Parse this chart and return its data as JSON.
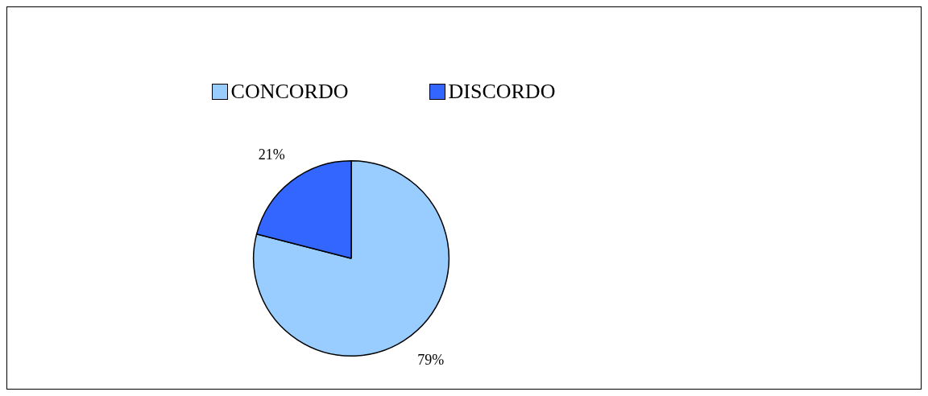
{
  "chart_data": {
    "type": "pie",
    "categories": [
      "CONCORDO",
      "DISCORDO"
    ],
    "values": [
      79,
      21
    ],
    "colors": [
      "#99ccff",
      "#3366ff"
    ],
    "value_labels": [
      "79%",
      "21%"
    ],
    "legend": "top"
  }
}
